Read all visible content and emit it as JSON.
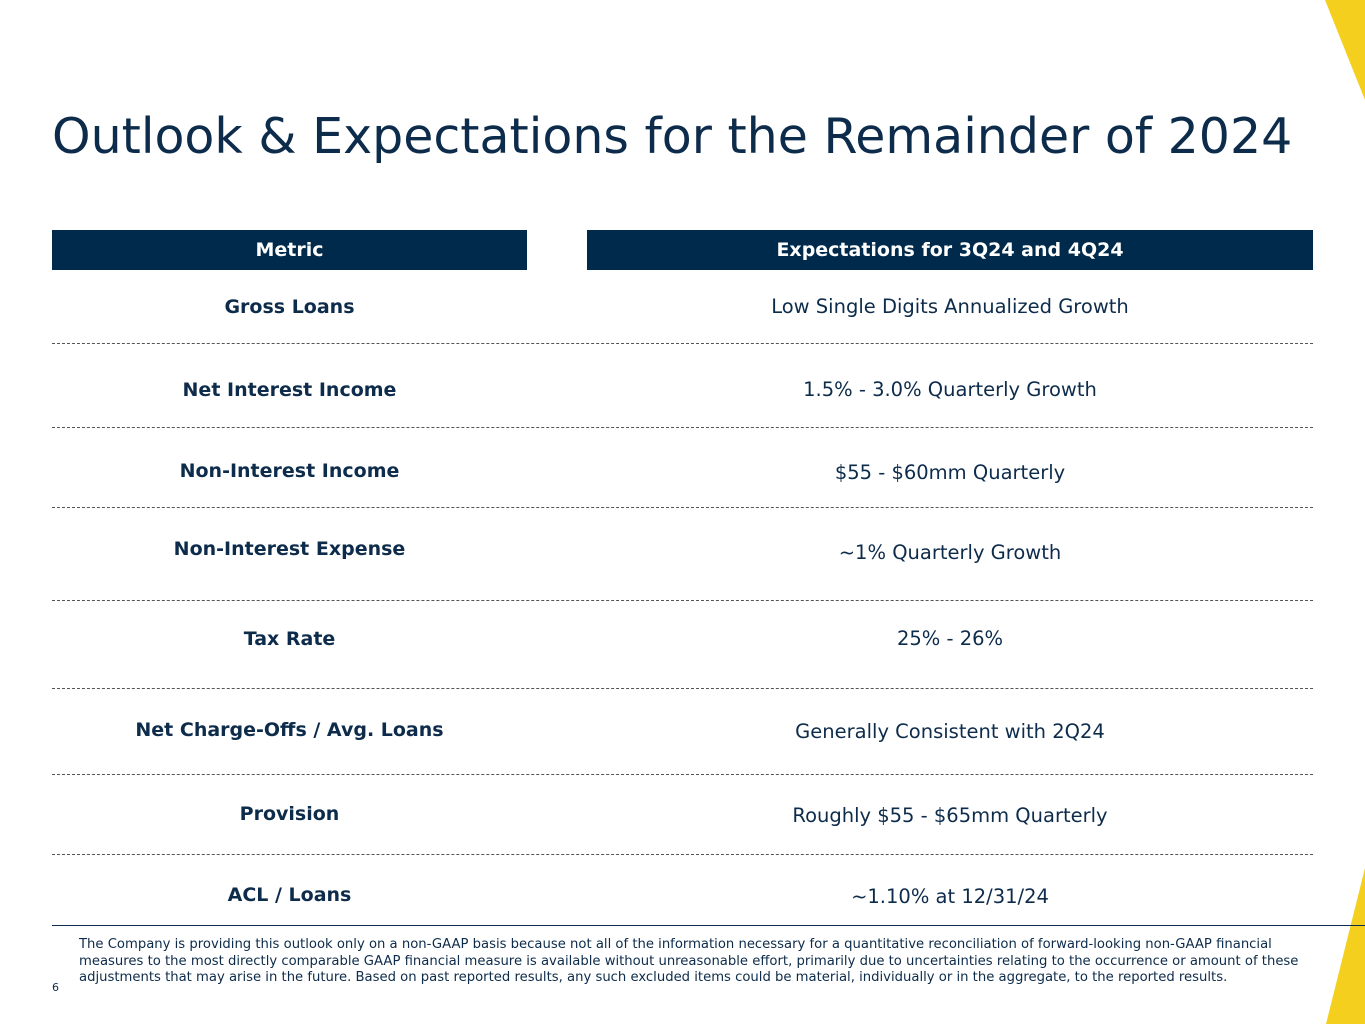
{
  "title": "Outlook & Expectations for the Remainder of 2024",
  "table": {
    "headers": [
      "Metric",
      "Expectations for 3Q24 and 4Q24"
    ],
    "rows": [
      {
        "metric": "Gross Loans",
        "value": "Low Single Digits Annualized Growth"
      },
      {
        "metric": "Net Interest Income",
        "value": "1.5% - 3.0% Quarterly Growth"
      },
      {
        "metric": "Non-Interest Income",
        "value": "$55 - $60mm Quarterly"
      },
      {
        "metric": "Non-Interest Expense",
        "value": "~1% Quarterly Growth"
      },
      {
        "metric": "Tax Rate",
        "value": "25% - 26%"
      },
      {
        "metric": "Net Charge-Offs / Avg. Loans",
        "value": "Generally Consistent with 2Q24"
      },
      {
        "metric": "Provision",
        "value": "Roughly $55 - $65mm Quarterly"
      },
      {
        "metric": "ACL / Loans",
        "value": "~1.10% at 12/31/24"
      }
    ]
  },
  "footnote": "The Company is providing this outlook only on a non-GAAP basis because not all of the information necessary for a quantitative reconciliation of forward-looking non-GAAP financial measures to the most directly comparable GAAP financial measure is available without unreasonable effort, primarily due to uncertainties relating to the occurrence or amount of these adjustments that may arise in the future. Based on past reported results, any such excluded items could be material, individually or in the aggregate, to the reported results.",
  "page_number": "6",
  "colors": {
    "navy": "#002a4b",
    "accent_yellow": "#f5cf1e"
  }
}
